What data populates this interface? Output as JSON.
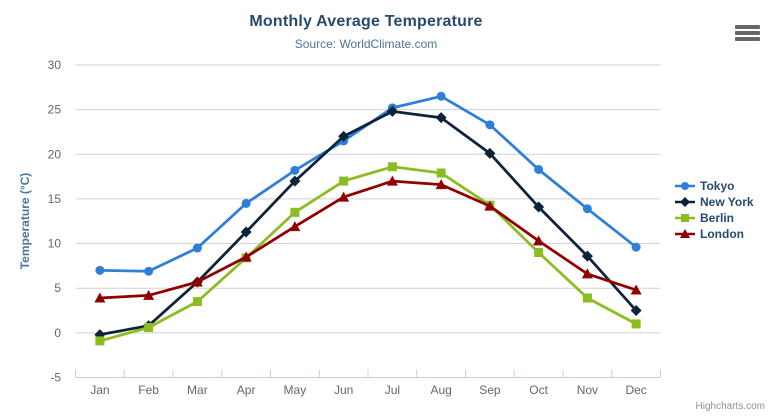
{
  "chart_data": {
    "type": "line",
    "title": "Monthly Average Temperature",
    "subtitle": "Source: WorldClimate.com",
    "categories": [
      "Jan",
      "Feb",
      "Mar",
      "Apr",
      "May",
      "Jun",
      "Jul",
      "Aug",
      "Sep",
      "Oct",
      "Nov",
      "Dec"
    ],
    "xlabel": "",
    "ylabel": "Temperature (°C)",
    "ylim": [
      -5,
      30
    ],
    "ytick_interval": 5,
    "yticks": [
      -5,
      0,
      5,
      10,
      15,
      20,
      25,
      30
    ],
    "grid": true,
    "legend_position": "right",
    "series": [
      {
        "name": "Tokyo",
        "color": "#2f7ed8",
        "marker": "circle",
        "values": [
          7.0,
          6.9,
          9.5,
          14.5,
          18.2,
          21.5,
          25.2,
          26.5,
          23.3,
          18.3,
          13.9,
          9.6
        ]
      },
      {
        "name": "New York",
        "color": "#0d233a",
        "marker": "diamond",
        "values": [
          -0.2,
          0.8,
          5.7,
          11.3,
          17.0,
          22.0,
          24.8,
          24.1,
          20.1,
          14.1,
          8.6,
          2.5
        ]
      },
      {
        "name": "Berlin",
        "color": "#8bbc21",
        "marker": "square",
        "values": [
          -0.9,
          0.6,
          3.5,
          8.4,
          13.5,
          17.0,
          18.6,
          17.9,
          14.3,
          9.0,
          3.9,
          1.0
        ]
      },
      {
        "name": "London",
        "color": "#910000",
        "marker": "triangle",
        "values": [
          3.9,
          4.2,
          5.7,
          8.5,
          11.9,
          15.2,
          17.0,
          16.6,
          14.2,
          10.3,
          6.6,
          4.8
        ]
      }
    ]
  },
  "credits": {
    "label": "Highcharts.com"
  },
  "export_menu": {
    "icon": "hamburger-icon"
  },
  "theme": {
    "title_color": "#274b6d",
    "subtitle_color": "#4d759e",
    "axis_label_color": "#666666",
    "axis_title_color": "#4d759e",
    "legend_text_color": "#274b6d",
    "grid_color": "#d0d0d0",
    "axis_line_color": "#c0d0e0",
    "credits_color": "#909090"
  }
}
